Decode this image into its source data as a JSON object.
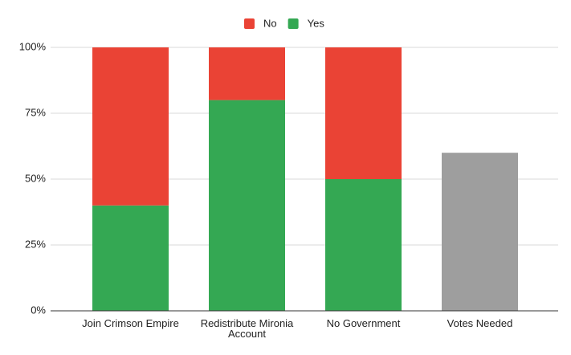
{
  "chart_data": {
    "type": "stacked_bar",
    "categories": [
      "Join Crimson Empire",
      "Redistribute Mironia Account",
      "No Government",
      "Votes Needed"
    ],
    "series": [
      {
        "name": "Yes",
        "color": "#34a853",
        "values": [
          40,
          80,
          50,
          null
        ]
      },
      {
        "name": "No",
        "color": "#ea4335",
        "values": [
          60,
          20,
          50,
          null
        ]
      },
      {
        "color": "#9e9e9e",
        "values": [
          null,
          null,
          null,
          60
        ]
      }
    ],
    "ylim": [
      0,
      100
    ],
    "yticks": [
      {
        "value": 0,
        "label": "0%"
      },
      {
        "value": 25,
        "label": "25%"
      },
      {
        "value": 50,
        "label": "50%"
      },
      {
        "value": 75,
        "label": "75%"
      },
      {
        "value": 100,
        "label": "100%"
      }
    ],
    "grid": true,
    "legend": "top"
  }
}
